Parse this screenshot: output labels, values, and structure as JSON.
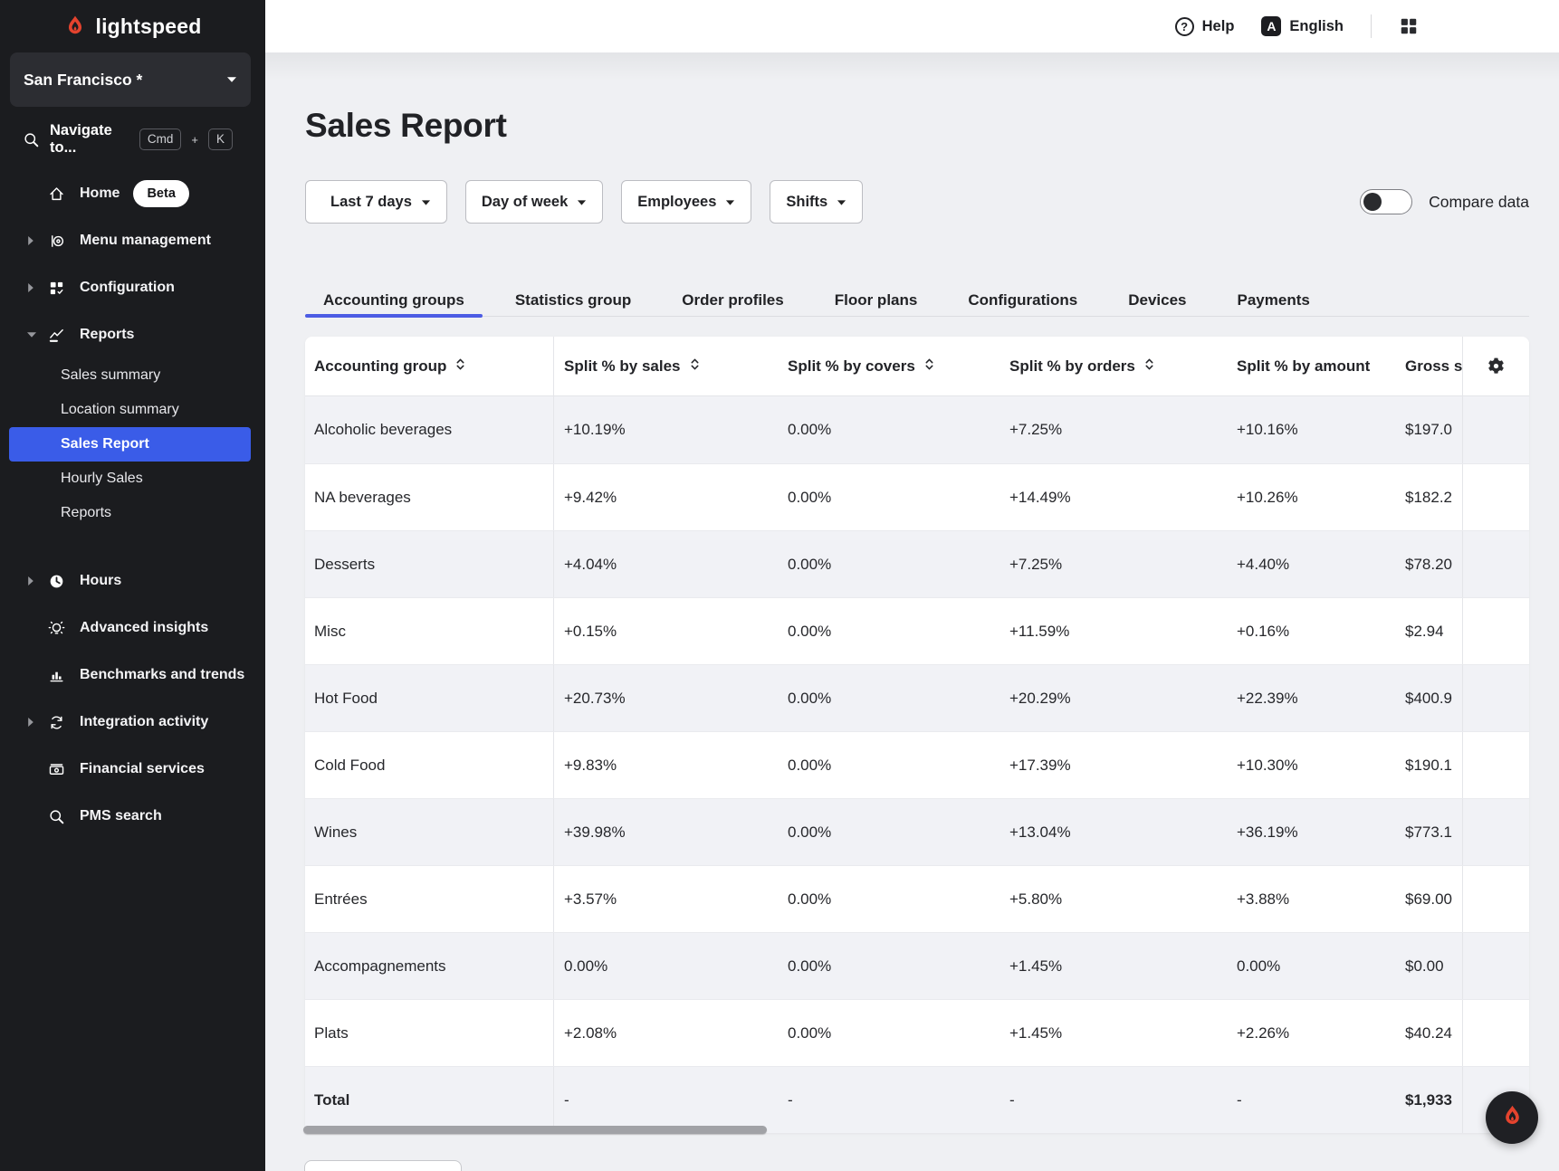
{
  "brand": {
    "name": "lightspeed"
  },
  "sidebar": {
    "location": "San Francisco *",
    "search": {
      "label": "Navigate to...",
      "key1": "Cmd",
      "plus": "+",
      "key2": "K"
    },
    "items": [
      {
        "type": "item",
        "icon": "home",
        "label": "Home",
        "badge": "Beta"
      },
      {
        "type": "item",
        "chevron": "right",
        "icon": "menu-management",
        "label": "Menu management"
      },
      {
        "type": "item",
        "chevron": "right",
        "icon": "configuration",
        "label": "Configuration"
      },
      {
        "type": "item",
        "chevron": "down",
        "icon": "reports",
        "label": "Reports",
        "expanded": true
      },
      {
        "type": "sub",
        "label": "Sales summary"
      },
      {
        "type": "sub",
        "label": "Location summary"
      },
      {
        "type": "sub",
        "label": "Sales Report",
        "active": true
      },
      {
        "type": "sub",
        "label": "Hourly Sales"
      },
      {
        "type": "sub",
        "label": "Reports"
      },
      {
        "type": "gap"
      },
      {
        "type": "item",
        "chevron": "right",
        "icon": "hours",
        "label": "Hours"
      },
      {
        "type": "item",
        "icon": "insights",
        "label": "Advanced insights"
      },
      {
        "type": "item",
        "icon": "benchmarks",
        "label": "Benchmarks and trends"
      },
      {
        "type": "item",
        "chevron": "right",
        "icon": "integration",
        "label": "Integration activity"
      },
      {
        "type": "item",
        "icon": "financial",
        "label": "Financial services"
      },
      {
        "type": "item",
        "icon": "search",
        "label": "PMS search"
      }
    ]
  },
  "topbar": {
    "help": "Help",
    "language": "English",
    "language_badge": "A"
  },
  "page": {
    "title": "Sales Report"
  },
  "filters": {
    "buttons": [
      {
        "label": "Last 7 days",
        "icon": "calendar"
      },
      {
        "label": "Day of week"
      },
      {
        "label": "Employees"
      },
      {
        "label": "Shifts"
      }
    ],
    "compare_label": "Compare data",
    "compare_on": false
  },
  "tabs": [
    {
      "label": "Accounting groups",
      "active": true
    },
    {
      "label": "Statistics group"
    },
    {
      "label": "Order profiles"
    },
    {
      "label": "Floor plans"
    },
    {
      "label": "Configurations"
    },
    {
      "label": "Devices"
    },
    {
      "label": "Payments"
    }
  ],
  "table": {
    "columns": [
      {
        "label": "Accounting group",
        "sortable": true
      },
      {
        "label": "Split % by sales",
        "sortable": true
      },
      {
        "label": "Split % by covers",
        "sortable": true
      },
      {
        "label": "Split % by orders",
        "sortable": true
      },
      {
        "label": "Split % by amount",
        "sortable": false
      },
      {
        "label": "Gross s",
        "sortable": false
      }
    ],
    "rows": [
      {
        "group": "Alcoholic beverages",
        "sales": "+10.19%",
        "covers": "0.00%",
        "orders": "+7.25%",
        "amount": "+10.16%",
        "gross": "$197.0"
      },
      {
        "group": "NA beverages",
        "sales": "+9.42%",
        "covers": "0.00%",
        "orders": "+14.49%",
        "amount": "+10.26%",
        "gross": "$182.2"
      },
      {
        "group": "Desserts",
        "sales": "+4.04%",
        "covers": "0.00%",
        "orders": "+7.25%",
        "amount": "+4.40%",
        "gross": "$78.20"
      },
      {
        "group": "Misc",
        "sales": "+0.15%",
        "covers": "0.00%",
        "orders": "+11.59%",
        "amount": "+0.16%",
        "gross": "$2.94"
      },
      {
        "group": "Hot Food",
        "sales": "+20.73%",
        "covers": "0.00%",
        "orders": "+20.29%",
        "amount": "+22.39%",
        "gross": "$400.9"
      },
      {
        "group": "Cold Food",
        "sales": "+9.83%",
        "covers": "0.00%",
        "orders": "+17.39%",
        "amount": "+10.30%",
        "gross": "$190.1"
      },
      {
        "group": "Wines",
        "sales": "+39.98%",
        "covers": "0.00%",
        "orders": "+13.04%",
        "amount": "+36.19%",
        "gross": "$773.1"
      },
      {
        "group": "Entrées",
        "sales": "+3.57%",
        "covers": "0.00%",
        "orders": "+5.80%",
        "amount": "+3.88%",
        "gross": "$69.00"
      },
      {
        "group": "Accompagnements",
        "sales": "0.00%",
        "covers": "0.00%",
        "orders": "+1.45%",
        "amount": "0.00%",
        "gross": "$0.00"
      },
      {
        "group": "Plats",
        "sales": "+2.08%",
        "covers": "0.00%",
        "orders": "+1.45%",
        "amount": "+2.26%",
        "gross": "$40.24"
      },
      {
        "group": "Total",
        "sales": "-",
        "covers": "-",
        "orders": "-",
        "amount": "-",
        "gross": "$1,933",
        "total": true
      }
    ]
  },
  "colors": {
    "accent_blue": "#3a5ce8",
    "tab_underline": "#4c5ce4",
    "brand_red": "#e4432e"
  }
}
